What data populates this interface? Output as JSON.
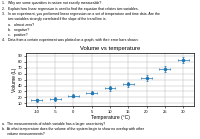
{
  "chart_data": {
    "type": "scatter",
    "title": "Volume vs temperature",
    "x_label": "Temperature (°C)",
    "y_label": "Volume (L)",
    "x": [
      -10,
      -5,
      0,
      5,
      10,
      15,
      20,
      25,
      30
    ],
    "values": [
      15,
      17,
      23,
      28,
      35,
      42,
      52,
      67,
      83
    ],
    "x_err": [
      1.5,
      1.5,
      1.5,
      1.5,
      1.5,
      1.5,
      1.5,
      1.5,
      1.5
    ],
    "y_err": [
      3,
      3,
      3,
      3,
      4,
      4,
      5,
      5,
      5
    ],
    "xlim": [
      -13,
      33
    ],
    "ylim": [
      5,
      95
    ],
    "xticks": [
      -10,
      -5,
      0,
      5,
      10,
      15,
      20,
      25,
      30
    ],
    "yticks": [
      10,
      20,
      30,
      40,
      50,
      60,
      70,
      80,
      90
    ],
    "grid": true,
    "marker": "o",
    "annotations_above": [
      "1.   Why are some quantities in nature not exactly measurable?",
      "2.   Explain how linear regression is used to find the equation that relates two variables.",
      "3.   In an experiment, you performed linear regression on a set of temperature and time data. Are the",
      "      two variables strongly correlated if the slope of the trend line is:",
      "      a.   almost zero?",
      "      b.   negative?",
      "      c.   positive?",
      "4.   Data from a certain experiment was plotted on a graph, with their error bars shown:"
    ],
    "annotations_below": [
      "a.  The measurements of which variable has a larger uncertainty?",
      "b.  At what temperature does the volume of the system begin to show no overlap with other",
      "     volume measurements?"
    ]
  }
}
